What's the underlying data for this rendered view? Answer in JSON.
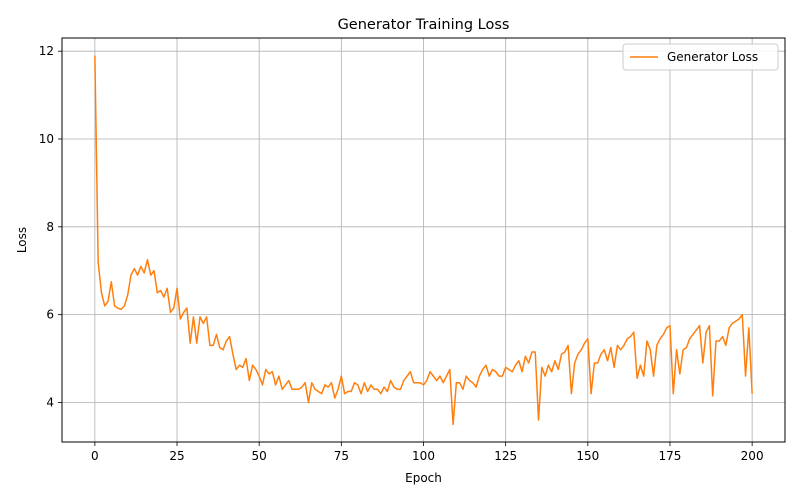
{
  "chart_data": {
    "type": "line",
    "title": "Generator Training Loss",
    "xlabel": "Epoch",
    "ylabel": "Loss",
    "xlim": [
      -10,
      210
    ],
    "ylim": [
      3.1,
      12.3
    ],
    "x_ticks": [
      0,
      25,
      50,
      75,
      100,
      125,
      150,
      175,
      200
    ],
    "y_ticks": [
      4,
      6,
      8,
      10,
      12
    ],
    "grid": true,
    "legend_position": "top-right",
    "series": [
      {
        "name": "Generator Loss",
        "color": "#ff7f0e",
        "x": [
          0,
          1,
          2,
          3,
          4,
          5,
          6,
          7,
          8,
          9,
          10,
          11,
          12,
          13,
          14,
          15,
          16,
          17,
          18,
          19,
          20,
          21,
          22,
          23,
          24,
          25,
          26,
          27,
          28,
          29,
          30,
          31,
          32,
          33,
          34,
          35,
          36,
          37,
          38,
          39,
          40,
          41,
          42,
          43,
          44,
          45,
          46,
          47,
          48,
          49,
          50,
          51,
          52,
          53,
          54,
          55,
          56,
          57,
          58,
          59,
          60,
          61,
          62,
          63,
          64,
          65,
          66,
          67,
          68,
          69,
          70,
          71,
          72,
          73,
          74,
          75,
          76,
          77,
          78,
          79,
          80,
          81,
          82,
          83,
          84,
          85,
          86,
          87,
          88,
          89,
          90,
          91,
          92,
          93,
          94,
          95,
          96,
          97,
          98,
          99,
          100,
          101,
          102,
          103,
          104,
          105,
          106,
          107,
          108,
          109,
          110,
          111,
          112,
          113,
          114,
          115,
          116,
          117,
          118,
          119,
          120,
          121,
          122,
          123,
          124,
          125,
          126,
          127,
          128,
          129,
          130,
          131,
          132,
          133,
          134,
          135,
          136,
          137,
          138,
          139,
          140,
          141,
          142,
          143,
          144,
          145,
          146,
          147,
          148,
          149,
          150,
          151,
          152,
          153,
          154,
          155,
          156,
          157,
          158,
          159,
          160,
          161,
          162,
          163,
          164,
          165,
          166,
          167,
          168,
          169,
          170,
          171,
          172,
          173,
          174,
          175,
          176,
          177,
          178,
          179,
          180,
          181,
          182,
          183,
          184,
          185,
          186,
          187,
          188,
          189,
          190,
          191,
          192,
          193,
          194,
          195,
          196,
          197,
          198,
          199,
          200
        ],
        "values": [
          11.9,
          7.2,
          6.5,
          6.2,
          6.3,
          6.75,
          6.2,
          6.15,
          6.12,
          6.2,
          6.45,
          6.9,
          7.05,
          6.9,
          7.1,
          6.95,
          7.25,
          6.9,
          7.0,
          6.5,
          6.55,
          6.4,
          6.6,
          6.05,
          6.15,
          6.6,
          5.9,
          6.05,
          6.15,
          5.35,
          5.95,
          5.35,
          5.95,
          5.8,
          5.95,
          5.3,
          5.3,
          5.55,
          5.25,
          5.2,
          5.4,
          5.5,
          5.1,
          4.75,
          4.85,
          4.8,
          5.0,
          4.5,
          4.85,
          4.75,
          4.6,
          4.4,
          4.75,
          4.65,
          4.7,
          4.4,
          4.6,
          4.3,
          4.4,
          4.5,
          4.3,
          4.3,
          4.3,
          4.35,
          4.45,
          4.0,
          4.45,
          4.3,
          4.25,
          4.2,
          4.4,
          4.35,
          4.45,
          4.1,
          4.3,
          4.6,
          4.2,
          4.25,
          4.25,
          4.45,
          4.4,
          4.2,
          4.45,
          4.25,
          4.4,
          4.3,
          4.3,
          4.2,
          4.35,
          4.25,
          4.5,
          4.35,
          4.3,
          4.3,
          4.5,
          4.6,
          4.7,
          4.45,
          4.45,
          4.45,
          4.4,
          4.5,
          4.7,
          4.6,
          4.5,
          4.6,
          4.45,
          4.6,
          4.75,
          3.5,
          4.45,
          4.45,
          4.3,
          4.6,
          4.5,
          4.45,
          4.35,
          4.6,
          4.75,
          4.85,
          4.6,
          4.75,
          4.7,
          4.6,
          4.6,
          4.8,
          4.75,
          4.7,
          4.85,
          4.95,
          4.7,
          5.05,
          4.9,
          5.15,
          5.15,
          3.6,
          4.8,
          4.6,
          4.85,
          4.7,
          4.95,
          4.75,
          5.1,
          5.15,
          5.3,
          4.2,
          4.9,
          5.1,
          5.2,
          5.35,
          5.45,
          4.2,
          4.9,
          4.9,
          5.1,
          5.2,
          4.95,
          5.25,
          4.8,
          5.3,
          5.2,
          5.3,
          5.45,
          5.5,
          5.6,
          4.55,
          4.85,
          4.6,
          5.4,
          5.2,
          4.6,
          5.3,
          5.45,
          5.55,
          5.7,
          5.75,
          4.2,
          5.2,
          4.65,
          5.2,
          5.25,
          5.45,
          5.55,
          5.65,
          5.75,
          4.9,
          5.6,
          5.75,
          4.15,
          5.4,
          5.4,
          5.5,
          5.3,
          5.7,
          5.8,
          5.85,
          5.9,
          6.0,
          4.6,
          5.7,
          4.2
        ]
      }
    ]
  }
}
